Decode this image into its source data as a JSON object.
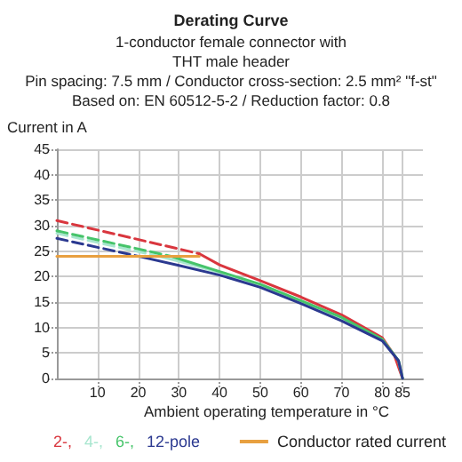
{
  "chart_data": {
    "type": "line",
    "title": "Derating Curve",
    "subtitle": "1-conductor female connector with\nTHT male header\nPin spacing: 7.5 mm / Conductor cross-section: 2.5 mm² \"f-st\"\nBased on: EN 60512-5-2 / Reduction factor: 0.8",
    "xlabel": "Ambient operating temperature in °C",
    "ylabel": "Current in A",
    "xlim": [
      0,
      90
    ],
    "xticks": [
      10,
      20,
      30,
      40,
      50,
      60,
      70,
      80,
      85
    ],
    "ylim": [
      0,
      45
    ],
    "yticks": [
      0,
      5,
      10,
      15,
      20,
      25,
      30,
      35,
      40,
      45
    ],
    "grid": true,
    "legend": "bottom",
    "marker": "none",
    "series": [
      {
        "name": "2-,",
        "color": "#d9363e",
        "x": [
          35,
          40,
          50,
          60,
          70,
          80,
          83,
          85
        ],
        "values": [
          24.5,
          22.3,
          19.2,
          16,
          12.5,
          8,
          4.5,
          0
        ]
      },
      {
        "name": "4-,",
        "color": "#a8e6cf",
        "x": [
          25,
          30,
          40,
          50,
          60,
          70,
          80,
          84,
          85
        ],
        "values": [
          24,
          23,
          20.8,
          18.3,
          15,
          11.7,
          7.6,
          3.5,
          0
        ]
      },
      {
        "name": "6-,",
        "color": "#46c46a",
        "x": [
          28,
          30,
          40,
          50,
          60,
          70,
          80,
          84,
          85
        ],
        "values": [
          24,
          23.5,
          21,
          18.5,
          15.3,
          12,
          7.7,
          3.5,
          0
        ]
      },
      {
        "name": "12-pole",
        "color": "#2b3990",
        "x": [
          20,
          30,
          40,
          50,
          60,
          70,
          80,
          84,
          85
        ],
        "values": [
          24,
          22.2,
          20.3,
          17.9,
          14.7,
          11.3,
          7.4,
          3.5,
          0
        ]
      },
      {
        "color": "#d9363e",
        "line_style": "dashed",
        "x": [
          0,
          35
        ],
        "values": [
          31,
          24.5
        ]
      },
      {
        "color": "#a8e6cf",
        "line_style": "dashed",
        "x": [
          0,
          25
        ],
        "values": [
          28.5,
          24
        ]
      },
      {
        "color": "#46c46a",
        "line_style": "dashed",
        "x": [
          0,
          28
        ],
        "values": [
          29,
          24
        ]
      },
      {
        "color": "#2b3990",
        "line_style": "dashed",
        "x": [
          0,
          20
        ],
        "values": [
          27.5,
          24
        ]
      },
      {
        "name": "Conductor rated current",
        "color": "#e8a040",
        "x": [
          0,
          35
        ],
        "values": [
          24,
          24
        ]
      }
    ]
  }
}
